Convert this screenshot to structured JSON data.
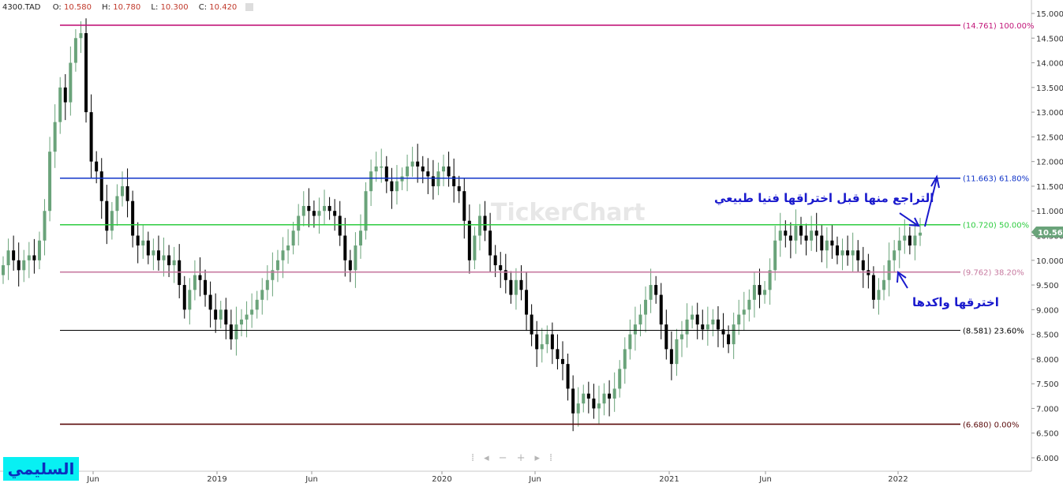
{
  "header": {
    "symbol": "4300.TAD",
    "open_label": "O:",
    "open": "10.580",
    "high_label": "H:",
    "high": "10.780",
    "low_label": "L:",
    "low": "10.300",
    "close_label": "C:",
    "close": "10.420"
  },
  "watermark": "TickerChart",
  "brand_label": "السليمي",
  "nav_controls": {
    "first": "⁞",
    "prev": "◂",
    "zoom_out": "−",
    "zoom_in": "+",
    "next": "▸",
    "last": "⁞"
  },
  "annotations": {
    "top_note": "التراجع منها قبل اختراقها فنيا طبيعي",
    "bottom_note": "اخترقها واكدها"
  },
  "colors": {
    "up_candle": "#6aa37a",
    "down_candle": "#000000",
    "fib_100": "#c2187a",
    "fib_618": "#1034c8",
    "fib_50": "#2ecc40",
    "fib_382": "#c77aa0",
    "fib_236": "#000000",
    "fib_0": "#5a0a0a",
    "price_badge": "#6aa37a",
    "annotation": "#1a1acd"
  },
  "chart_data": {
    "type": "candlestick",
    "ylim": [
      6.0,
      15.0
    ],
    "y_ticks": [
      "15.000",
      "14.500",
      "14.000",
      "13.500",
      "13.000",
      "12.500",
      "12.000",
      "11.500",
      "11.000",
      "10.500",
      "10.000",
      "9.500",
      "9.000",
      "8.500",
      "8.000",
      "7.500",
      "7.000",
      "6.500",
      "6.000"
    ],
    "x_tick_labels": [
      "Jun",
      "2019",
      "Jun",
      "2020",
      "Jun",
      "2021",
      "Jun",
      "2022"
    ],
    "last_price": "10.560",
    "fib_levels": [
      {
        "label": "(14.761) 100.00%",
        "value": 14.761,
        "color_key": "fib_100"
      },
      {
        "label": "(11.663) 61.80%",
        "value": 11.663,
        "color_key": "fib_618"
      },
      {
        "label": "(10.720) 50.00%",
        "value": 10.72,
        "color_key": "fib_50"
      },
      {
        "label": "(9.762) 38.20%",
        "value": 9.762,
        "color_key": "fib_382"
      },
      {
        "label": "(8.581) 23.60%",
        "value": 8.581,
        "color_key": "fib_236"
      },
      {
        "label": "(6.680) 0.00%",
        "value": 6.68,
        "color_key": "fib_0"
      }
    ],
    "closes": [
      9.9,
      10.2,
      10.0,
      9.8,
      10.0,
      10.1,
      10.0,
      10.4,
      11.0,
      12.2,
      12.8,
      13.5,
      13.2,
      14.0,
      14.5,
      14.6,
      13.0,
      12.0,
      11.8,
      11.2,
      10.6,
      11.0,
      11.3,
      11.5,
      11.2,
      10.5,
      10.3,
      10.4,
      10.1,
      10.2,
      10.0,
      10.1,
      9.9,
      10.0,
      9.5,
      9.0,
      9.4,
      9.7,
      9.6,
      9.3,
      9.0,
      8.8,
      9.0,
      8.7,
      8.4,
      8.7,
      8.8,
      8.9,
      9.0,
      9.2,
      9.4,
      9.6,
      9.8,
      10.0,
      10.2,
      10.3,
      10.6,
      10.9,
      11.1,
      11.0,
      10.9,
      11.0,
      11.1,
      11.0,
      10.9,
      10.5,
      10.0,
      9.8,
      10.3,
      10.6,
      11.4,
      11.8,
      11.9,
      11.9,
      11.6,
      11.4,
      11.6,
      11.7,
      11.9,
      12.0,
      11.9,
      11.8,
      11.7,
      11.5,
      11.8,
      11.9,
      11.7,
      11.5,
      11.4,
      10.8,
      10.0,
      10.5,
      10.9,
      10.6,
      10.1,
      9.9,
      9.8,
      9.6,
      9.3,
      9.6,
      9.4,
      8.9,
      8.5,
      8.2,
      8.3,
      8.5,
      8.2,
      8.0,
      7.9,
      7.4,
      6.9,
      7.1,
      7.3,
      7.2,
      7.0,
      7.1,
      7.3,
      7.2,
      7.4,
      7.8,
      8.2,
      8.5,
      8.7,
      8.9,
      9.2,
      9.5,
      9.3,
      8.7,
      8.2,
      7.9,
      8.4,
      8.5,
      8.8,
      8.9,
      8.7,
      8.6,
      8.7,
      8.8,
      8.6,
      8.5,
      8.3,
      8.7,
      8.9,
      9.0,
      9.2,
      9.5,
      9.3,
      9.4,
      9.8,
      10.4,
      10.6,
      10.5,
      10.4,
      10.7,
      10.5,
      10.4,
      10.6,
      10.5,
      10.2,
      10.4,
      10.3,
      10.1,
      10.2,
      10.1,
      10.2,
      10.0,
      9.8,
      9.7,
      9.2,
      9.4,
      9.6,
      10.0,
      10.2,
      10.4,
      10.5,
      10.3,
      10.5,
      10.56
    ]
  }
}
